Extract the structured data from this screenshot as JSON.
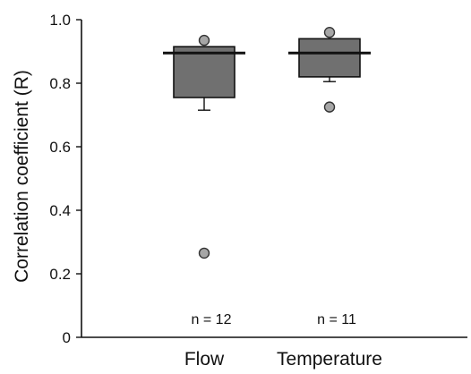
{
  "chart_data": {
    "type": "boxplot",
    "title": "",
    "xlabel": "",
    "ylabel": "Correlation coefficient (R)",
    "ylim": [
      0,
      1.0
    ],
    "y_ticks": [
      0,
      0.2,
      0.4,
      0.6,
      0.8,
      1.0
    ],
    "y_tick_labels": [
      "0",
      "0.2",
      "0.4",
      "0.6",
      "0.8",
      "1.0"
    ],
    "categories": [
      "Flow",
      "Temperature"
    ],
    "grid": false,
    "legend": "none",
    "series": [
      {
        "category": "Flow",
        "median": 0.895,
        "q1": 0.755,
        "q3": 0.915,
        "whisker_low": 0.715,
        "whisker_high": 0.915,
        "outliers": [
          0.935,
          0.265
        ],
        "n_label": "n = 12"
      },
      {
        "category": "Temperature",
        "median": 0.895,
        "q1": 0.82,
        "q3": 0.94,
        "whisker_low": 0.805,
        "whisker_high": 0.94,
        "outliers": [
          0.96,
          0.725
        ],
        "n_label": "n = 11"
      }
    ],
    "colors": {
      "box_fill": "#707070",
      "outlier_fill": "#a6a6a6",
      "line": "#111111"
    }
  }
}
